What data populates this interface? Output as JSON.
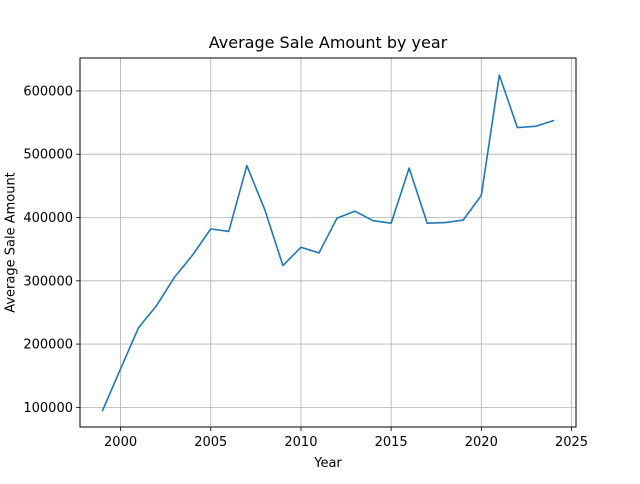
{
  "chart_data": {
    "type": "line",
    "title": "Average Sale Amount by year",
    "xlabel": "Year",
    "ylabel": "Average Sale Amount",
    "xlim": [
      1997.75,
      2025.25
    ],
    "ylim": [
      69000,
      652000
    ],
    "xticks": [
      2000,
      2005,
      2010,
      2015,
      2020,
      2025
    ],
    "xtick_labels": [
      "2000",
      "2005",
      "2010",
      "2015",
      "2020",
      "2025"
    ],
    "yticks": [
      100000,
      200000,
      300000,
      400000,
      500000,
      600000
    ],
    "ytick_labels": [
      "100000",
      "200000",
      "300000",
      "400000",
      "500000",
      "600000"
    ],
    "grid": true,
    "series": [
      {
        "color": "#1f77b4",
        "x": [
          1999,
          2000,
          2001,
          2002,
          2003,
          2004,
          2005,
          2006,
          2007,
          2008,
          2009,
          2010,
          2011,
          2012,
          2013,
          2014,
          2015,
          2016,
          2017,
          2018,
          2019,
          2020,
          2021,
          2022,
          2023,
          2024
        ],
        "y": [
          95000,
          161000,
          226000,
          261000,
          306000,
          341000,
          382000,
          378000,
          482000,
          412000,
          324000,
          353000,
          344000,
          399000,
          410000,
          395000,
          391000,
          478000,
          391000,
          392000,
          396000,
          435000,
          625000,
          542000,
          544000,
          553000
        ]
      }
    ]
  }
}
